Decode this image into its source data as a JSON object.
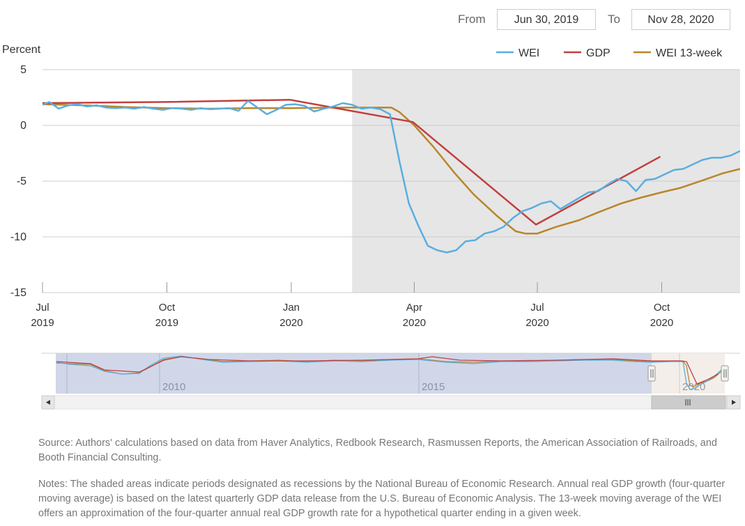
{
  "range": {
    "from_label": "From",
    "from_value": "Jun 30, 2019",
    "to_label": "To",
    "to_value": "Nov 28, 2020"
  },
  "colors": {
    "wei": "#5aaee0",
    "gdp": "#c0403f",
    "wei13": "#b8862a",
    "recession": "#e6e6e6",
    "navigator_mask": "#c5cde3"
  },
  "chart_data": {
    "type": "line",
    "ylabel": "Percent",
    "ylim": [
      -15,
      5
    ],
    "yticks": [
      "5",
      "0",
      "-5",
      "-10",
      "-15"
    ],
    "xlim": [
      "2019-07-01",
      "2020-11-28"
    ],
    "xticks": [
      {
        "top": "Jul",
        "bottom": "2019",
        "date": "2019-07-01"
      },
      {
        "top": "Oct",
        "bottom": "2019",
        "date": "2019-10-01"
      },
      {
        "top": "Jan",
        "bottom": "2020",
        "date": "2020-01-01"
      },
      {
        "top": "Apr",
        "bottom": "2020",
        "date": "2020-04-01"
      },
      {
        "top": "Jul",
        "bottom": "2020",
        "date": "2020-07-01"
      },
      {
        "top": "Oct",
        "bottom": "2020",
        "date": "2020-10-01"
      }
    ],
    "recession": {
      "start": "2020-02-15",
      "end": "2020-11-28"
    },
    "legend": [
      "WEI",
      "GDP",
      "WEI 13-week"
    ],
    "series": [
      {
        "name": "WEI",
        "points": [
          [
            "2019-06-30",
            1.8
          ],
          [
            "2019-07-06",
            2.1
          ],
          [
            "2019-07-13",
            1.5
          ],
          [
            "2019-07-20",
            1.8
          ],
          [
            "2019-07-27",
            1.9
          ],
          [
            "2019-08-03",
            1.7
          ],
          [
            "2019-08-10",
            1.8
          ],
          [
            "2019-08-17",
            1.6
          ],
          [
            "2019-08-24",
            1.55
          ],
          [
            "2019-08-31",
            1.6
          ],
          [
            "2019-09-07",
            1.5
          ],
          [
            "2019-09-14",
            1.65
          ],
          [
            "2019-09-21",
            1.5
          ],
          [
            "2019-09-28",
            1.4
          ],
          [
            "2019-10-05",
            1.55
          ],
          [
            "2019-10-12",
            1.5
          ],
          [
            "2019-10-19",
            1.4
          ],
          [
            "2019-10-26",
            1.55
          ],
          [
            "2019-11-02",
            1.45
          ],
          [
            "2019-11-09",
            1.5
          ],
          [
            "2019-11-16",
            1.55
          ],
          [
            "2019-11-23",
            1.3
          ],
          [
            "2019-11-30",
            2.2
          ],
          [
            "2019-12-07",
            1.6
          ],
          [
            "2019-12-14",
            1.0
          ],
          [
            "2019-12-21",
            1.4
          ],
          [
            "2019-12-28",
            1.85
          ],
          [
            "2020-01-04",
            1.9
          ],
          [
            "2020-01-11",
            1.75
          ],
          [
            "2020-01-18",
            1.25
          ],
          [
            "2020-01-25",
            1.5
          ],
          [
            "2020-02-01",
            1.7
          ],
          [
            "2020-02-08",
            2.0
          ],
          [
            "2020-02-15",
            1.85
          ],
          [
            "2020-02-22",
            1.5
          ],
          [
            "2020-02-29",
            1.6
          ],
          [
            "2020-03-07",
            1.45
          ],
          [
            "2020-03-14",
            1.0
          ],
          [
            "2020-03-21",
            -3.2
          ],
          [
            "2020-03-28",
            -7.0
          ],
          [
            "2020-04-04",
            -9.0
          ],
          [
            "2020-04-11",
            -10.8
          ],
          [
            "2020-04-18",
            -11.2
          ],
          [
            "2020-04-25",
            -11.4
          ],
          [
            "2020-05-02",
            -11.2
          ],
          [
            "2020-05-09",
            -10.4
          ],
          [
            "2020-05-16",
            -10.3
          ],
          [
            "2020-05-23",
            -9.7
          ],
          [
            "2020-05-30",
            -9.5
          ],
          [
            "2020-06-06",
            -9.1
          ],
          [
            "2020-06-13",
            -8.3
          ],
          [
            "2020-06-20",
            -7.7
          ],
          [
            "2020-06-27",
            -7.4
          ],
          [
            "2020-07-04",
            -7.0
          ],
          [
            "2020-07-11",
            -6.8
          ],
          [
            "2020-07-18",
            -7.5
          ],
          [
            "2020-07-25",
            -7.0
          ],
          [
            "2020-08-01",
            -6.5
          ],
          [
            "2020-08-08",
            -6.0
          ],
          [
            "2020-08-15",
            -5.9
          ],
          [
            "2020-08-22",
            -5.3
          ],
          [
            "2020-08-29",
            -4.8
          ],
          [
            "2020-09-05",
            -5.0
          ],
          [
            "2020-09-12",
            -5.9
          ],
          [
            "2020-09-19",
            -4.9
          ],
          [
            "2020-09-26",
            -4.8
          ],
          [
            "2020-10-03",
            -4.4
          ],
          [
            "2020-10-10",
            -4.0
          ],
          [
            "2020-10-17",
            -3.9
          ],
          [
            "2020-10-24",
            -3.5
          ],
          [
            "2020-10-31",
            -3.1
          ],
          [
            "2020-11-07",
            -2.9
          ],
          [
            "2020-11-14",
            -2.9
          ],
          [
            "2020-11-21",
            -2.7
          ],
          [
            "2020-11-28",
            -2.3
          ]
        ]
      },
      {
        "name": "GDP",
        "points": [
          [
            "2019-06-30",
            2.0
          ],
          [
            "2019-09-30",
            2.1
          ],
          [
            "2019-12-31",
            2.3
          ],
          [
            "2020-03-31",
            0.3
          ],
          [
            "2020-06-30",
            -8.9
          ],
          [
            "2020-09-30",
            -2.8
          ]
        ]
      },
      {
        "name": "WEI 13-week",
        "points": [
          [
            "2019-06-30",
            1.9
          ],
          [
            "2019-08-01",
            1.8
          ],
          [
            "2019-09-01",
            1.65
          ],
          [
            "2019-10-01",
            1.55
          ],
          [
            "2019-11-01",
            1.5
          ],
          [
            "2019-12-01",
            1.55
          ],
          [
            "2020-01-01",
            1.55
          ],
          [
            "2020-02-01",
            1.6
          ],
          [
            "2020-02-15",
            1.6
          ],
          [
            "2020-03-01",
            1.6
          ],
          [
            "2020-03-15",
            1.6
          ],
          [
            "2020-03-21",
            1.2
          ],
          [
            "2020-04-01",
            0.0
          ],
          [
            "2020-04-15",
            -1.9
          ],
          [
            "2020-05-01",
            -4.3
          ],
          [
            "2020-05-15",
            -6.2
          ],
          [
            "2020-06-01",
            -8.1
          ],
          [
            "2020-06-15",
            -9.5
          ],
          [
            "2020-06-22",
            -9.7
          ],
          [
            "2020-07-01",
            -9.7
          ],
          [
            "2020-07-15",
            -9.1
          ],
          [
            "2020-08-01",
            -8.5
          ],
          [
            "2020-08-15",
            -7.8
          ],
          [
            "2020-09-01",
            -7.0
          ],
          [
            "2020-09-15",
            -6.5
          ],
          [
            "2020-10-01",
            -6.0
          ],
          [
            "2020-10-15",
            -5.6
          ],
          [
            "2020-11-01",
            -4.9
          ],
          [
            "2020-11-15",
            -4.3
          ],
          [
            "2020-11-28",
            -3.9
          ]
        ]
      }
    ]
  },
  "navigator": {
    "labels": [
      "2010",
      "2015",
      "2020"
    ]
  },
  "source_text": "Source: Authors' calculations based on data from Haver Analytics, Redbook Research, Rasmussen Reports, the American Association of Railroads, and Booth Financial Consulting.",
  "notes_text": "Notes: The shaded areas indicate periods designated as recessions by the National Bureau of Economic Research. Annual real GDP growth (four-quarter moving average) is based on the latest quarterly GDP data release from the U.S. Bureau of Economic Analysis. The 13-week moving average of the WEI offers an approximation of the four-quarter annual real GDP growth rate for a hypothetical quarter ending in a given week."
}
